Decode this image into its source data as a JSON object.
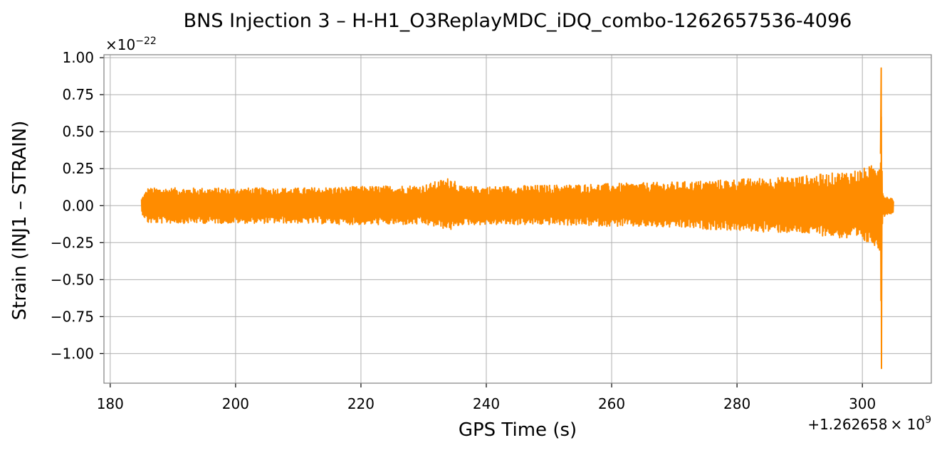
{
  "chart_data": {
    "type": "line",
    "title": "BNS Injection 3 – H-H1_O3ReplayMDC_iDQ_combo-1262657536-4096",
    "xlabel": "GPS Time (s)",
    "ylabel": "Strain (INJ1 – STRAIN)",
    "x_offset_text": "+1.262658",
    "x_offset_exp_text": "× 10",
    "x_offset_exp": "9",
    "y_scale_text": "×10",
    "y_scale_exp": "−22",
    "xlim": [
      179,
      311
    ],
    "ylim": [
      -1.2,
      1.02
    ],
    "xticks": [
      180,
      200,
      220,
      240,
      260,
      280,
      300
    ],
    "xtick_labels": [
      "180",
      "200",
      "220",
      "240",
      "260",
      "280",
      "300"
    ],
    "yticks": [
      -1.0,
      -0.75,
      -0.5,
      -0.25,
      0.0,
      0.25,
      0.5,
      0.75,
      1.0
    ],
    "ytick_labels": [
      "−1.00",
      "−0.75",
      "−0.50",
      "−0.25",
      "0.00",
      "0.25",
      "0.50",
      "0.75",
      "1.00"
    ],
    "grid": true,
    "line_color": "#ff8c00",
    "series": [
      {
        "x_range": [
          185.0,
          305.0
        ],
        "envelope": {
          "x": [
            185,
            186,
            190,
            200,
            210,
            220,
            230,
            234.9,
            235.1,
            236,
            240,
            250,
            260,
            270,
            280,
            290,
            295,
            300,
            302,
            302.9,
            303.0,
            303.1,
            303.3,
            304,
            305
          ],
          "upper": [
            0.05,
            0.12,
            0.12,
            0.12,
            0.12,
            0.13,
            0.14,
            0.2,
            0.16,
            0.13,
            0.13,
            0.14,
            0.15,
            0.16,
            0.18,
            0.2,
            0.22,
            0.25,
            0.28,
            0.35,
            0.93,
            0.35,
            0.08,
            0.06,
            0.05
          ],
          "lower": [
            -0.05,
            -0.12,
            -0.12,
            -0.12,
            -0.12,
            -0.13,
            -0.13,
            -0.17,
            -0.15,
            -0.13,
            -0.13,
            -0.13,
            -0.14,
            -0.15,
            -0.17,
            -0.19,
            -0.21,
            -0.25,
            -0.27,
            -0.35,
            -1.1,
            -0.35,
            -0.08,
            -0.06,
            -0.05
          ]
        }
      }
    ]
  }
}
